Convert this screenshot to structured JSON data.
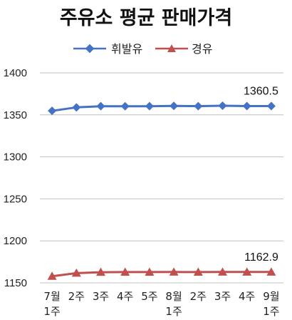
{
  "chart_data": {
    "type": "line",
    "title": "주유소 평균 판매가격",
    "categories": [
      [
        "7월",
        "1주"
      ],
      [
        "2주"
      ],
      [
        "3주"
      ],
      [
        "4주"
      ],
      [
        "5주"
      ],
      [
        "8월",
        "1주"
      ],
      [
        "2주"
      ],
      [
        "3주"
      ],
      [
        "4주"
      ],
      [
        "9월",
        "1주"
      ]
    ],
    "series": [
      {
        "name": "휘발유",
        "color": "#4472C4",
        "marker": "diamond",
        "values": [
          1354.8,
          1358.9,
          1360.3,
          1360.2,
          1360.3,
          1360.7,
          1360.4,
          1360.9,
          1360.5,
          1360.5
        ]
      },
      {
        "name": "경유",
        "color": "#C0504D",
        "marker": "triangle",
        "values": [
          1157.9,
          1161.6,
          1162.7,
          1162.8,
          1162.8,
          1162.9,
          1162.8,
          1162.9,
          1162.9,
          1162.9
        ]
      }
    ],
    "yticks": [
      1150,
      1200,
      1250,
      1300,
      1350,
      1400
    ],
    "ylim": [
      1150,
      1400
    ],
    "annotations": [
      {
        "series": 0,
        "index": 9,
        "text": "1360.5"
      },
      {
        "series": 1,
        "index": 9,
        "text": "1162.9"
      }
    ],
    "grid": true,
    "legend_position": "top-center"
  }
}
